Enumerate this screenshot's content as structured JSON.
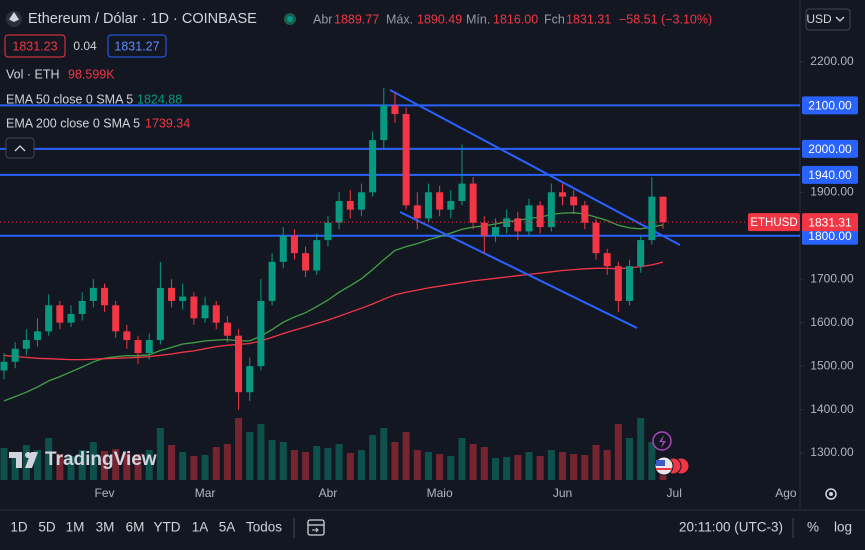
{
  "chart_data": {
    "type": "candlestick",
    "title": "Ethereum / Dólar · 1D · COINBASE",
    "legend": [
      {
        "label": "Abr",
        "value": "1889.77"
      },
      {
        "label": "Máx.",
        "value": "1890.49"
      },
      {
        "label": "Mín.",
        "value": "1816.00"
      },
      {
        "label": "Fch",
        "value": "1831.31"
      }
    ],
    "change": "−58.51 (−3.10%)",
    "up_color": "#089981",
    "down_color": "#f23645",
    "categories": [
      null,
      null,
      null,
      null,
      null,
      null,
      null,
      null,
      null,
      "Fev",
      null,
      null,
      null,
      null,
      null,
      null,
      null,
      null,
      "Mar",
      null,
      null,
      null,
      null,
      null,
      null,
      null,
      null,
      null,
      null,
      "Abr",
      null,
      null,
      null,
      null,
      null,
      null,
      null,
      null,
      null,
      "Maio",
      null,
      null,
      null,
      null,
      null,
      null,
      null,
      null,
      null,
      null,
      "Jun",
      null,
      null,
      null,
      null,
      null,
      null,
      null,
      null,
      null,
      "Jul",
      null,
      null,
      null,
      null,
      null,
      null,
      null,
      null,
      null,
      "Ago",
      null
    ],
    "open": [
      1490,
      1510,
      1540,
      1560,
      1580,
      1640,
      1600,
      1620,
      1650,
      1680,
      1640,
      1580,
      1560,
      1530,
      1560,
      1680,
      1650,
      1660,
      1610,
      1640,
      1600,
      1570,
      1440,
      1500,
      1650,
      1740,
      1800,
      1760,
      1720,
      1790,
      1830,
      1880,
      1860,
      1900,
      2020,
      2100,
      2080,
      1870,
      1840,
      1900,
      1860,
      1880,
      1920,
      1830,
      1800,
      1820,
      1840,
      1810,
      1870,
      1820,
      1900,
      1890,
      1870,
      1830,
      1760,
      1730,
      1650,
      1730,
      1790,
      1889.77,
      null,
      null,
      null,
      null,
      null,
      null,
      null,
      null,
      null,
      null,
      null,
      null
    ],
    "high": [
      1530,
      1555,
      1585,
      1610,
      1665,
      1650,
      1640,
      1670,
      1700,
      1690,
      1650,
      1595,
      1570,
      1575,
      1740,
      1700,
      1690,
      1670,
      1660,
      1650,
      1615,
      1585,
      1520,
      1700,
      1760,
      1820,
      1815,
      1775,
      1805,
      1845,
      1900,
      1905,
      1920,
      2040,
      2140,
      2130,
      2095,
      1900,
      1920,
      1915,
      1905,
      2010,
      1935,
      1845,
      1840,
      1860,
      1855,
      1885,
      1880,
      1920,
      1920,
      1905,
      1880,
      1840,
      1770,
      1740,
      1745,
      1800,
      1935,
      1890.49,
      null,
      null,
      null,
      null,
      null,
      null,
      null,
      null,
      null,
      null,
      null,
      null
    ],
    "low": [
      1470,
      1495,
      1525,
      1545,
      1570,
      1585,
      1590,
      1605,
      1635,
      1625,
      1565,
      1540,
      1505,
      1515,
      1550,
      1635,
      1630,
      1595,
      1600,
      1585,
      1555,
      1400,
      1420,
      1490,
      1640,
      1725,
      1745,
      1705,
      1710,
      1775,
      1815,
      1840,
      1845,
      1890,
      2000,
      2060,
      1860,
      1815,
      1830,
      1845,
      1840,
      1870,
      1815,
      1760,
      1785,
      1805,
      1790,
      1800,
      1805,
      1810,
      1870,
      1850,
      1815,
      1745,
      1710,
      1625,
      1640,
      1715,
      1780,
      1816,
      null,
      null,
      null,
      null,
      null,
      null,
      null,
      null,
      null,
      null,
      null,
      null
    ],
    "close": [
      1510,
      1540,
      1560,
      1580,
      1640,
      1600,
      1620,
      1650,
      1680,
      1640,
      1580,
      1560,
      1530,
      1560,
      1680,
      1650,
      1660,
      1610,
      1640,
      1600,
      1570,
      1440,
      1500,
      1650,
      1740,
      1800,
      1760,
      1720,
      1790,
      1830,
      1880,
      1860,
      1900,
      2020,
      2100,
      2080,
      1870,
      1840,
      1900,
      1860,
      1880,
      1920,
      1830,
      1800,
      1820,
      1840,
      1810,
      1870,
      1820,
      1900,
      1890,
      1870,
      1830,
      1760,
      1730,
      1650,
      1730,
      1790,
      1890,
      1831.31,
      null,
      null,
      null,
      null,
      null,
      null,
      null,
      null,
      null,
      null,
      null,
      null
    ],
    "volume": {
      "name": "Vol · ETH",
      "last": "98.599K",
      "vlim": [
        0,
        1000000
      ],
      "values": [
        320000,
        280000,
        350000,
        300000,
        420000,
        260000,
        240000,
        300000,
        380000,
        290000,
        310000,
        270000,
        260000,
        300000,
        520000,
        350000,
        280000,
        240000,
        250000,
        330000,
        360000,
        620000,
        480000,
        560000,
        400000,
        380000,
        300000,
        280000,
        340000,
        320000,
        360000,
        270000,
        300000,
        450000,
        520000,
        380000,
        480000,
        300000,
        280000,
        260000,
        240000,
        420000,
        360000,
        330000,
        220000,
        230000,
        250000,
        280000,
        240000,
        300000,
        280000,
        260000,
        250000,
        350000,
        300000,
        560000,
        420000,
        620000,
        380000,
        98599,
        null,
        null,
        null,
        null,
        null,
        null,
        null,
        null,
        null,
        null,
        null,
        null
      ]
    },
    "lines": [
      {
        "name": "EMA 50 close 0 SMA 5",
        "color": "#43a047",
        "values": [
          1420,
          1430,
          1440,
          1452,
          1466,
          1476,
          1487,
          1498,
          1510,
          1518,
          1522,
          1524,
          1524,
          1526,
          1536,
          1543,
          1551,
          1554,
          1558,
          1560,
          1561,
          1558,
          1558,
          1569,
          1584,
          1601,
          1613,
          1623,
          1637,
          1652,
          1670,
          1685,
          1701,
          1722,
          1745,
          1766,
          1775,
          1782,
          1791,
          1798,
          1806,
          1815,
          1820,
          1823,
          1827,
          1832,
          1835,
          1840,
          1843,
          1849,
          1852,
          1853,
          1850,
          1843,
          1835,
          1824,
          1818,
          1816,
          1820,
          1824.88,
          null,
          null,
          null,
          null,
          null,
          null,
          null,
          null,
          null,
          null,
          null,
          null
        ]
      },
      {
        "name": "EMA 200 close 0 SMA 5",
        "color": "#f23645",
        "values": [
          1525,
          1522,
          1520,
          1518,
          1517,
          1516,
          1515,
          1515,
          1516,
          1517,
          1518,
          1519,
          1520,
          1522,
          1525,
          1528,
          1532,
          1535,
          1540,
          1545,
          1548,
          1550,
          1552,
          1558,
          1566,
          1575,
          1583,
          1590,
          1598,
          1606,
          1615,
          1624,
          1633,
          1643,
          1654,
          1664,
          1670,
          1675,
          1680,
          1684,
          1688,
          1692,
          1696,
          1699,
          1702,
          1705,
          1708,
          1711,
          1714,
          1717,
          1720,
          1722,
          1724,
          1725,
          1725,
          1724,
          1726,
          1729,
          1733,
          1739.34,
          null,
          null,
          null,
          null,
          null,
          null,
          null,
          null,
          null,
          null,
          null,
          null
        ]
      }
    ],
    "levels": [
      {
        "value": 2100,
        "label": "2100.00"
      },
      {
        "value": 2000,
        "label": "2000.00"
      },
      {
        "value": 1940,
        "label": "1940.00"
      },
      {
        "value": 1800,
        "label": "1800.00"
      }
    ],
    "level_color": "#2962ff",
    "ylim": [
      1238,
      2255
    ],
    "yticks": [
      {
        "value": 1300,
        "label": "1300.00"
      },
      {
        "value": 1400,
        "label": "1400.00"
      },
      {
        "value": 1500,
        "label": "1500.00"
      },
      {
        "value": 1600,
        "label": "1600.00"
      },
      {
        "value": 1700,
        "label": "1700.00"
      },
      {
        "value": 1900,
        "label": "1900.00"
      },
      {
        "value": 2200,
        "label": "2200.00"
      }
    ],
    "grid": false,
    "symbol_tag": "ETHUSD"
  },
  "ui": {
    "bid": 1831.23,
    "spread": 0.04,
    "ask": 1831.27,
    "currency": "USD",
    "logo": "TradingView",
    "ranges": [
      "1D",
      "5D",
      "1M",
      "3M",
      "6M",
      "YTD",
      "1A",
      "5A",
      "Todos"
    ],
    "time": "20:11:00 (UTC-3)",
    "percent": "%",
    "log": "log"
  }
}
